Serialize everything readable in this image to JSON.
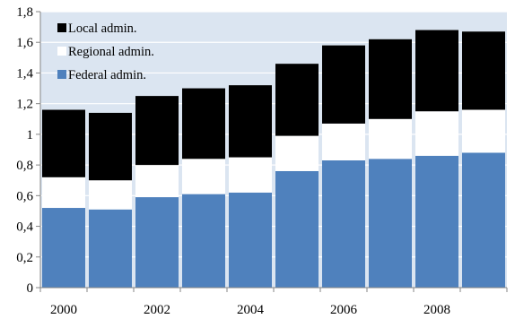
{
  "chart_data": {
    "type": "bar",
    "stacked": true,
    "categories": [
      "2000",
      "2001",
      "2002",
      "2003",
      "2004",
      "2005",
      "2006",
      "2007",
      "2008",
      "2009"
    ],
    "x_tick_labels": [
      "2000",
      "",
      "2002",
      "",
      "2004",
      "",
      "2006",
      "",
      "2008",
      ""
    ],
    "series": [
      {
        "name": "Federal admin.",
        "color": "#4f81bd",
        "values": [
          0.52,
          0.51,
          0.59,
          0.61,
          0.62,
          0.76,
          0.83,
          0.84,
          0.86,
          0.88
        ]
      },
      {
        "name": "Regional admin.",
        "color": "#ffffff",
        "values": [
          0.2,
          0.19,
          0.21,
          0.23,
          0.23,
          0.23,
          0.24,
          0.26,
          0.29,
          0.28
        ]
      },
      {
        "name": "Local admin.",
        "color": "#000000",
        "values": [
          0.44,
          0.44,
          0.45,
          0.46,
          0.47,
          0.47,
          0.51,
          0.52,
          0.53,
          0.51
        ]
      }
    ],
    "y_tick_labels": [
      "0",
      "0,2",
      "0,4",
      "0,6",
      "0,8",
      "1",
      "1,2",
      "1,4",
      "1,6",
      "1,8"
    ],
    "ylim": [
      0,
      1.8
    ],
    "grid": true,
    "legend_position": "top-left",
    "legend_order": [
      "Local admin.",
      "Regional admin.",
      "Federal admin."
    ],
    "plot_background": "#dbe5f1",
    "title": "",
    "xlabel": "",
    "ylabel": ""
  }
}
